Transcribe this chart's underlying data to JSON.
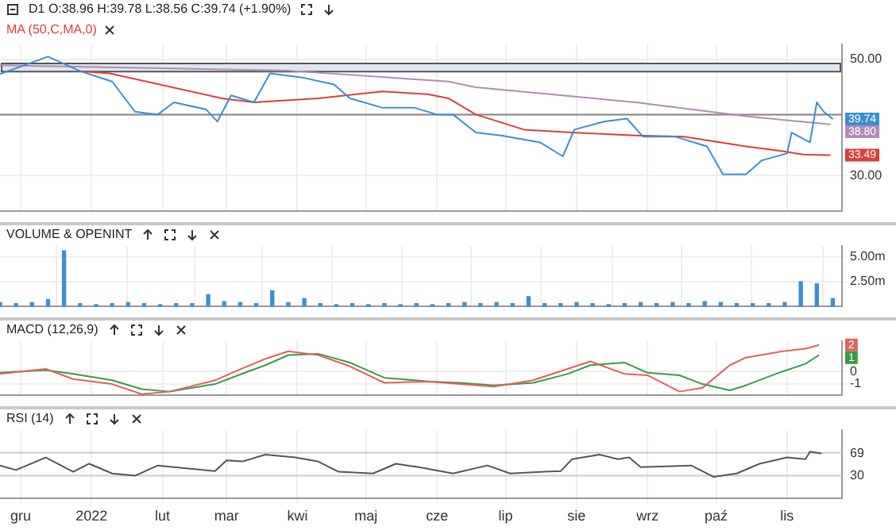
{
  "chart_data": [
    {
      "type": "line",
      "title": "D1 O:38.96 H:39.78 L:38.56 C:39.74 (+1.90%)",
      "legend": "top left",
      "grid": true,
      "tick_labels": "y",
      "xlim": [
        "2021-11-22",
        "2022-11-25"
      ],
      "xticks": [
        {
          "value": "2021-12-01",
          "label": null
        },
        {
          "value": "2022-01-01",
          "label": null
        },
        {
          "value": "2022-02-01",
          "label": null
        },
        {
          "value": "2022-03-01",
          "label": null
        },
        {
          "value": "2022-04-01",
          "label": null
        },
        {
          "value": "2022-05-01",
          "label": null
        },
        {
          "value": "2022-06-01",
          "label": null
        },
        {
          "value": "2022-07-01",
          "label": null
        },
        {
          "value": "2022-08-01",
          "label": null
        },
        {
          "value": "2022-09-01",
          "label": null
        },
        {
          "value": "2022-10-01",
          "label": null
        },
        {
          "value": "2022-11-01",
          "label": null
        }
      ],
      "ylim": [
        23.8,
        52.6
      ],
      "yticks": [
        {
          "value": 30,
          "label": "30.00"
        },
        {
          "value": 50,
          "label": "50.00"
        }
      ],
      "series": [
        {
          "color": "#3a8fd0",
          "x": [
            "2021-11-22",
            "2021-12-13",
            "2021-12-27",
            "2022-01-10",
            "2022-01-20",
            "2022-01-30",
            "2022-02-06",
            "2022-02-20",
            "2022-02-25",
            "2022-03-03",
            "2022-03-13",
            "2022-03-20",
            "2022-04-03",
            "2022-04-17",
            "2022-04-24",
            "2022-05-08",
            "2022-05-22",
            "2022-06-01",
            "2022-06-08",
            "2022-06-18",
            "2022-06-29",
            "2022-07-16",
            "2022-07-26",
            "2022-07-31",
            "2022-08-13",
            "2022-08-23",
            "2022-08-30",
            "2022-09-13",
            "2022-09-27",
            "2022-10-04",
            "2022-10-14",
            "2022-10-21",
            "2022-11-01",
            "2022-11-03",
            "2022-11-11",
            "2022-11-14",
            "2022-11-17",
            "2022-11-21"
          ],
          "values": [
            47.5,
            50.5,
            48.0,
            46.2,
            41.0,
            40.5,
            42.6,
            41.4,
            39.3,
            43.8,
            42.6,
            47.6,
            46.9,
            45.7,
            43.3,
            41.7,
            41.7,
            40.5,
            40.5,
            37.4,
            36.9,
            35.7,
            33.3,
            37.9,
            39.3,
            39.8,
            36.7,
            36.7,
            35.0,
            30.2,
            30.2,
            32.6,
            33.8,
            37.4,
            35.7,
            42.6,
            41.0,
            39.74
          ]
        },
        {
          "name": "MA (50,C,MA,0)",
          "color": "#d9403a",
          "x": [
            "2021-12-26",
            "2022-01-09",
            "2022-02-27",
            "2022-03-13",
            "2022-04-10",
            "2022-05-08",
            "2022-05-28",
            "2022-06-06",
            "2022-06-18",
            "2022-07-09",
            "2022-07-30",
            "2022-08-27",
            "2022-09-17",
            "2022-10-14",
            "2022-10-28",
            "2022-11-08",
            "2022-11-20"
          ],
          "values": [
            48.0,
            47.6,
            43.3,
            42.6,
            43.3,
            44.5,
            44.0,
            43.3,
            40.5,
            37.9,
            37.4,
            36.9,
            36.7,
            35.0,
            34.3,
            33.6,
            33.49
          ]
        },
        {
          "color": "#b48ab8",
          "x": [
            "2021-11-22",
            "2022-03-27",
            "2022-06-06",
            "2022-06-18",
            "2022-08-27",
            "2022-10-14",
            "2022-11-20"
          ],
          "values": [
            49.0,
            48.1,
            46.2,
            45.2,
            42.6,
            40.2,
            38.8
          ]
        }
      ],
      "ref_lines": [
        {
          "axis": "y",
          "value": 40.5,
          "color": "#808080"
        }
      ],
      "bands": [
        {
          "axis": "y",
          "from": 47.9,
          "to": 49.3,
          "color": "#dde6f0"
        }
      ],
      "annotations": [
        {
          "text": "39.74",
          "x": "2022-11-21",
          "y": 39.74
        },
        {
          "text": "38.80",
          "x": "2022-11-20",
          "y": 38.8
        },
        {
          "text": "33.49",
          "x": "2022-11-20",
          "y": 33.49
        }
      ]
    },
    {
      "type": "bar",
      "title": "VOLUME & OPENINT",
      "grid": true,
      "tick_labels": "y",
      "color": "#3a8fd0",
      "xlim": [
        "2021-11-22",
        "2022-11-25"
      ],
      "xticks": [
        {
          "value": "2021-12-01",
          "label": null
        },
        {
          "value": "2022-01-01",
          "label": null
        },
        {
          "value": "2022-02-01",
          "label": null
        },
        {
          "value": "2022-03-01",
          "label": null
        },
        {
          "value": "2022-04-01",
          "label": null
        },
        {
          "value": "2022-05-01",
          "label": null
        },
        {
          "value": "2022-06-01",
          "label": null
        },
        {
          "value": "2022-07-01",
          "label": null
        },
        {
          "value": "2022-08-01",
          "label": null
        },
        {
          "value": "2022-09-01",
          "label": null
        },
        {
          "value": "2022-10-01",
          "label": null
        },
        {
          "value": "2022-11-01",
          "label": null
        }
      ],
      "ylim": [
        0,
        6.1
      ],
      "yticks": [
        {
          "value": 2.5,
          "label": "2.50m"
        },
        {
          "value": 5,
          "label": "5.00m"
        }
      ],
      "x": [
        "2021-11-22",
        "2021-11-29",
        "2021-12-06",
        "2021-12-13",
        "2021-12-20",
        "2021-12-27",
        "2022-01-03",
        "2022-01-10",
        "2022-01-17",
        "2022-01-24",
        "2022-01-31",
        "2022-02-07",
        "2022-02-14",
        "2022-02-21",
        "2022-02-28",
        "2022-03-07",
        "2022-03-14",
        "2022-03-21",
        "2022-03-28",
        "2022-04-04",
        "2022-04-11",
        "2022-04-18",
        "2022-04-25",
        "2022-05-02",
        "2022-05-09",
        "2022-05-16",
        "2022-05-23",
        "2022-05-30",
        "2022-06-06",
        "2022-06-13",
        "2022-06-20",
        "2022-06-27",
        "2022-07-04",
        "2022-07-11",
        "2022-07-18",
        "2022-07-25",
        "2022-08-01",
        "2022-08-08",
        "2022-08-15",
        "2022-08-22",
        "2022-08-29",
        "2022-09-05",
        "2022-09-12",
        "2022-09-19",
        "2022-09-26",
        "2022-10-03",
        "2022-10-10",
        "2022-10-17",
        "2022-10-24",
        "2022-10-31",
        "2022-11-07",
        "2022-11-14",
        "2022-11-21"
      ],
      "values": [
        0.4,
        0.3,
        0.4,
        0.7,
        5.6,
        0.3,
        0.2,
        0.3,
        0.4,
        0.3,
        0.2,
        0.3,
        0.3,
        1.2,
        0.5,
        0.4,
        0.3,
        1.6,
        0.4,
        0.8,
        0.3,
        0.2,
        0.3,
        0.2,
        0.3,
        0.2,
        0.3,
        0.2,
        0.3,
        0.4,
        0.3,
        0.4,
        0.3,
        1.0,
        0.3,
        0.3,
        0.4,
        0.3,
        0.2,
        0.3,
        0.4,
        0.3,
        0.4,
        0.3,
        0.5,
        0.4,
        0.3,
        0.3,
        0.3,
        0.4,
        2.5,
        2.3,
        0.8
      ]
    },
    {
      "type": "line",
      "title": "MACD (12,26,9)",
      "grid": true,
      "tick_labels": "y",
      "xlim": [
        "2021-11-22",
        "2022-11-25"
      ],
      "xticks": [
        {
          "value": "2021-12-01",
          "label": null
        },
        {
          "value": "2022-01-01",
          "label": null
        },
        {
          "value": "2022-02-01",
          "label": null
        },
        {
          "value": "2022-03-01",
          "label": null
        },
        {
          "value": "2022-04-01",
          "label": null
        },
        {
          "value": "2022-05-01",
          "label": null
        },
        {
          "value": "2022-06-01",
          "label": null
        },
        {
          "value": "2022-07-01",
          "label": null
        },
        {
          "value": "2022-08-01",
          "label": null
        },
        {
          "value": "2022-09-01",
          "label": null
        },
        {
          "value": "2022-10-01",
          "label": null
        },
        {
          "value": "2022-11-01",
          "label": null
        }
      ],
      "ylim": [
        -1.9,
        2.4
      ],
      "yticks": [
        -1,
        0
      ],
      "x": [
        "2021-11-22",
        "2021-12-12",
        "2021-12-24",
        "2022-01-10",
        "2022-01-23",
        "2022-02-04",
        "2022-02-24",
        "2022-03-06",
        "2022-03-18",
        "2022-03-28",
        "2022-04-10",
        "2022-04-24",
        "2022-05-09",
        "2022-05-29",
        "2022-06-11",
        "2022-06-26",
        "2022-07-13",
        "2022-07-28",
        "2022-08-07",
        "2022-08-22",
        "2022-09-01",
        "2022-09-15",
        "2022-09-25",
        "2022-10-07",
        "2022-10-14",
        "2022-10-30",
        "2022-11-09",
        "2022-11-15"
      ],
      "series": [
        {
          "color": "#e0625a",
          "values": [
            -0.2,
            0.2,
            -0.6,
            -1.0,
            -1.8,
            -1.6,
            -0.7,
            0.1,
            1.0,
            1.6,
            1.3,
            0.4,
            -0.9,
            -0.8,
            -1.0,
            -1.2,
            -0.7,
            0.2,
            0.8,
            -0.2,
            -0.3,
            -1.6,
            -1.3,
            0.5,
            1.1,
            1.6,
            1.8,
            2.1
          ]
        },
        {
          "color": "#3a9a4a",
          "values": [
            -0.1,
            0.1,
            -0.2,
            -0.7,
            -1.4,
            -1.6,
            -1.0,
            -0.3,
            0.5,
            1.3,
            1.4,
            0.7,
            -0.5,
            -0.8,
            -0.9,
            -1.1,
            -0.9,
            -0.2,
            0.5,
            0.7,
            -0.1,
            -0.3,
            -1.0,
            -1.5,
            -1.1,
            0.0,
            0.6,
            1.3
          ]
        }
      ],
      "annotations": [
        {
          "text": "2",
          "x": "2022-11-15",
          "y": 2.1
        },
        {
          "text": "1",
          "x": "2022-11-15",
          "y": 1.3
        }
      ]
    },
    {
      "type": "line",
      "title": "RSI (14)",
      "grid": "x",
      "color": "#555555",
      "xlim": [
        "2021-11-22",
        "2022-11-25"
      ],
      "xticks": [
        {
          "value": "2021-12-01",
          "label": "gru"
        },
        {
          "value": "2022-01-01",
          "label": "2022"
        },
        {
          "value": "2022-02-01",
          "label": "lut"
        },
        {
          "value": "2022-03-01",
          "label": "mar"
        },
        {
          "value": "2022-04-01",
          "label": "kwi"
        },
        {
          "value": "2022-05-01",
          "label": "maj"
        },
        {
          "value": "2022-06-01",
          "label": "cze"
        },
        {
          "value": "2022-07-01",
          "label": "lip"
        },
        {
          "value": "2022-08-01",
          "label": "sie"
        },
        {
          "value": "2022-09-01",
          "label": "wrz"
        },
        {
          "value": "2022-10-01",
          "label": "paź"
        },
        {
          "value": "2022-11-01",
          "label": "lis"
        }
      ],
      "ylim": [
        -10,
        110
      ],
      "yticks": [
        30,
        69
      ],
      "x": [
        "2021-11-22",
        "2021-11-29",
        "2021-12-12",
        "2021-12-24",
        "2021-12-31",
        "2022-01-10",
        "2022-01-20",
        "2022-01-30",
        "2022-02-14",
        "2022-02-24",
        "2022-03-01",
        "2022-03-08",
        "2022-03-18",
        "2022-03-31",
        "2022-04-10",
        "2022-04-19",
        "2022-05-04",
        "2022-05-14",
        "2022-05-24",
        "2022-06-08",
        "2022-06-23",
        "2022-07-03",
        "2022-07-18",
        "2022-07-25",
        "2022-07-30",
        "2022-08-11",
        "2022-08-19",
        "2022-08-24",
        "2022-08-29",
        "2022-09-15",
        "2022-09-20",
        "2022-09-30",
        "2022-10-10",
        "2022-10-20",
        "2022-11-01",
        "2022-11-09",
        "2022-11-11",
        "2022-11-16"
      ],
      "values": [
        48,
        40,
        62,
        37,
        51,
        34,
        30,
        48,
        42,
        38,
        57,
        55,
        67,
        62,
        55,
        37,
        34,
        51,
        45,
        34,
        48,
        34,
        37,
        38,
        59,
        67,
        59,
        62,
        45,
        47,
        48,
        28,
        34,
        51,
        62,
        59,
        72,
        69
      ],
      "ref_lines": [
        {
          "axis": "y",
          "value": 70,
          "color": "#cccccc"
        },
        {
          "axis": "y",
          "value": 30,
          "color": "#cccccc"
        }
      ]
    }
  ]
}
